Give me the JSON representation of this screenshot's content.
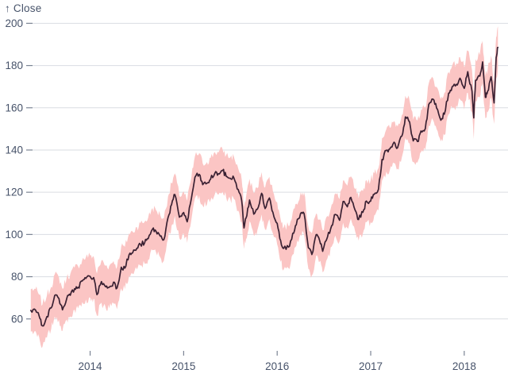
{
  "chart_data": {
    "type": "line",
    "title": "",
    "subtitle": "",
    "ylabel": "↑ Close",
    "xlabel": "",
    "legend": false,
    "grid": true,
    "y_ticks": [
      60,
      80,
      100,
      120,
      140,
      160,
      180,
      200
    ],
    "x_ticks": [
      "2014",
      "2015",
      "2016",
      "2017",
      "2018"
    ],
    "ylim": [
      44.5,
      199.5
    ],
    "band": {
      "around": "Close",
      "offset_below": 10,
      "offset_above": 10
    },
    "noise": {
      "line": 1.2,
      "band": 2.0,
      "subdivisions": 3,
      "seed": 7
    },
    "colors": {
      "band": "#fbc5c4",
      "line": "#3a2133",
      "grid": "#dadde2",
      "tick": "#7b8494",
      "text": "#47536a",
      "background": "#ffffff"
    },
    "series": [
      {
        "name": "Close",
        "dates": [
          "2013-05-13",
          "2013-06-01",
          "2013-06-15",
          "2013-06-28",
          "2013-07-15",
          "2013-08-01",
          "2013-08-15",
          "2013-09-01",
          "2013-09-15",
          "2013-10-01",
          "2013-10-15",
          "2013-11-01",
          "2013-11-15",
          "2013-12-01",
          "2013-12-15",
          "2014-01-01",
          "2014-01-15",
          "2014-01-28",
          "2014-02-15",
          "2014-03-01",
          "2014-03-15",
          "2014-04-01",
          "2014-04-15",
          "2014-05-01",
          "2014-05-15",
          "2014-06-01",
          "2014-06-15",
          "2014-07-01",
          "2014-07-15",
          "2014-08-01",
          "2014-08-15",
          "2014-09-01",
          "2014-09-15",
          "2014-10-01",
          "2014-10-15",
          "2014-11-01",
          "2014-11-15",
          "2014-11-28",
          "2014-12-15",
          "2015-01-01",
          "2015-01-15",
          "2015-02-01",
          "2015-02-15",
          "2015-03-01",
          "2015-03-15",
          "2015-04-01",
          "2015-04-15",
          "2015-05-01",
          "2015-05-15",
          "2015-06-01",
          "2015-06-15",
          "2015-07-01",
          "2015-07-15",
          "2015-08-01",
          "2015-08-15",
          "2015-08-24",
          "2015-09-01",
          "2015-09-15",
          "2015-10-01",
          "2015-10-15",
          "2015-11-01",
          "2015-11-15",
          "2015-12-01",
          "2015-12-15",
          "2016-01-01",
          "2016-01-15",
          "2016-01-27",
          "2016-02-15",
          "2016-03-01",
          "2016-03-15",
          "2016-04-01",
          "2016-04-15",
          "2016-05-01",
          "2016-05-15",
          "2016-06-01",
          "2016-06-15",
          "2016-06-27",
          "2016-07-15",
          "2016-08-01",
          "2016-08-15",
          "2016-09-01",
          "2016-09-15",
          "2016-10-01",
          "2016-10-15",
          "2016-11-01",
          "2016-11-15",
          "2016-12-01",
          "2016-12-15",
          "2017-01-01",
          "2017-01-15",
          "2017-02-01",
          "2017-02-15",
          "2017-03-01",
          "2017-03-15",
          "2017-04-01",
          "2017-04-15",
          "2017-05-01",
          "2017-05-15",
          "2017-06-01",
          "2017-06-15",
          "2017-07-01",
          "2017-07-15",
          "2017-08-01",
          "2017-08-15",
          "2017-09-01",
          "2017-09-15",
          "2017-10-01",
          "2017-10-15",
          "2017-11-01",
          "2017-11-15",
          "2017-12-01",
          "2017-12-15",
          "2018-01-01",
          "2018-01-15",
          "2018-02-01",
          "2018-02-08",
          "2018-02-15",
          "2018-03-01",
          "2018-03-12",
          "2018-03-23",
          "2018-04-01",
          "2018-04-15",
          "2018-04-27",
          "2018-05-04",
          "2018-05-11"
        ],
        "values": [
          64.0,
          64.2,
          61.4,
          56.7,
          61.1,
          65.2,
          71.1,
          69.6,
          64.3,
          69.7,
          71.2,
          74.3,
          75.0,
          78.0,
          79.2,
          80.1,
          79.6,
          71.5,
          77.7,
          75.2,
          75.0,
          77.4,
          74.6,
          84.5,
          84.1,
          90.4,
          91.3,
          93.5,
          95.3,
          96.1,
          98.0,
          102.5,
          101.6,
          99.2,
          97.5,
          108.0,
          114.2,
          118.9,
          108.2,
          110.4,
          106.0,
          117.2,
          127.1,
          128.5,
          123.6,
          124.3,
          126.2,
          129.0,
          128.8,
          130.3,
          127.6,
          126.6,
          126.8,
          121.3,
          116.0,
          103.1,
          107.7,
          116.3,
          109.6,
          111.9,
          119.5,
          112.3,
          117.3,
          110.5,
          105.3,
          97.1,
          93.4,
          94.0,
          100.5,
          104.6,
          110.0,
          109.9,
          93.7,
          90.5,
          99.9,
          97.1,
          92.0,
          98.8,
          104.2,
          109.5,
          106.7,
          115.6,
          113.1,
          117.6,
          111.5,
          107.1,
          110.5,
          115.8,
          115.8,
          119.0,
          121.4,
          135.5,
          139.8,
          140.5,
          143.7,
          141.1,
          146.6,
          155.7,
          153.2,
          144.3,
          144.0,
          149.0,
          150.1,
          161.6,
          164.1,
          159.9,
          154.1,
          157.0,
          166.9,
          170.0,
          171.1,
          174.0,
          169.2,
          177.1,
          167.8,
          155.2,
          173.0,
          175.0,
          181.7,
          164.9,
          167.8,
          174.7,
          162.3,
          183.8,
          188.6
        ]
      }
    ]
  }
}
